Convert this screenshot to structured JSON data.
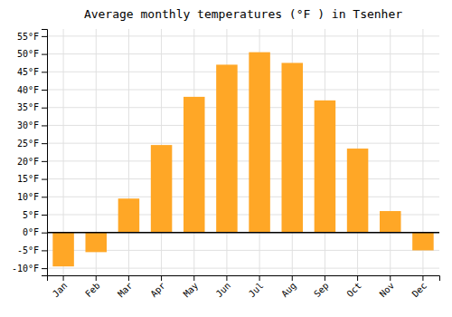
{
  "chart_data": {
    "type": "bar",
    "title": "Average monthly temperatures (°F ) in Tsenher",
    "categories": [
      "Jan",
      "Feb",
      "Mar",
      "Apr",
      "May",
      "Jun",
      "Jul",
      "Aug",
      "Sep",
      "Oct",
      "Nov",
      "Dec"
    ],
    "values": [
      -9.5,
      -5.5,
      9.5,
      24.5,
      38,
      47,
      50.5,
      47.5,
      37,
      23.5,
      6,
      -5
    ],
    "color": "#FFA726",
    "ylim": [
      -12,
      57
    ],
    "yticks": [
      {
        "value": -10,
        "label": "-10°F"
      },
      {
        "value": -5,
        "label": "-5°F"
      },
      {
        "value": 0,
        "label": "0°F"
      },
      {
        "value": 5,
        "label": "5°F"
      },
      {
        "value": 10,
        "label": "10°F"
      },
      {
        "value": 15,
        "label": "15°F"
      },
      {
        "value": 20,
        "label": "20°F"
      },
      {
        "value": 25,
        "label": "25°F"
      },
      {
        "value": 30,
        "label": "30°F"
      },
      {
        "value": 35,
        "label": "35°F"
      },
      {
        "value": 40,
        "label": "40°F"
      },
      {
        "value": 45,
        "label": "45°F"
      },
      {
        "value": 50,
        "label": "50°F"
      },
      {
        "value": 55,
        "label": "55°F"
      }
    ],
    "grid": true
  }
}
